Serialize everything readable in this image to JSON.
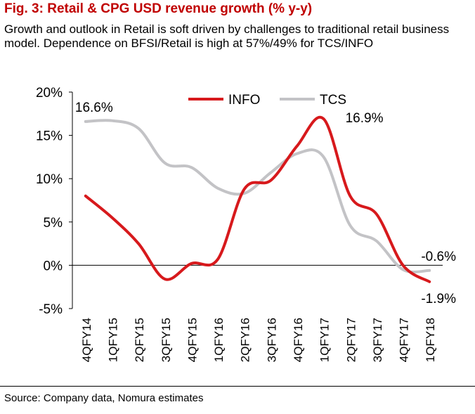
{
  "header": {
    "title": "Fig. 3: Retail & CPG USD revenue growth (% y-y)",
    "subtitle": "Growth and outlook in Retail is soft driven by challenges to traditional retail business model. Dependence on BFSI/Retail is high at 57%/49% for TCS/INFO"
  },
  "footer": {
    "source": "Source: Company data, Nomura estimates"
  },
  "chart_data": {
    "type": "line",
    "categories": [
      "4QFY14",
      "1QFY15",
      "2QFY15",
      "3QFY15",
      "4QFY15",
      "1QFY16",
      "2QFY16",
      "3QFY16",
      "4QFY16",
      "1QFY17",
      "2QFY17",
      "3QFY17",
      "4QFY17",
      "1QFY18"
    ],
    "y_ticks": [
      "20%",
      "15%",
      "10%",
      "5%",
      "0%",
      "-5%"
    ],
    "ylim": [
      -5,
      20
    ],
    "grid": false,
    "legend_position": "top",
    "series": [
      {
        "name": "INFO",
        "color": "#d7191c",
        "values": [
          8.0,
          5.5,
          2.5,
          -1.6,
          0.2,
          0.7,
          8.8,
          9.8,
          13.8,
          16.9,
          8.0,
          5.9,
          0.0,
          -1.9
        ]
      },
      {
        "name": "TCS",
        "color": "#c3c3c6",
        "values": [
          16.6,
          16.7,
          15.8,
          11.8,
          11.3,
          8.9,
          8.3,
          10.7,
          12.9,
          12.5,
          4.6,
          2.8,
          -0.5,
          -0.6
        ]
      }
    ],
    "annotations": [
      {
        "text": "16.6%",
        "series": 1,
        "index": 0,
        "pos": "above"
      },
      {
        "text": "16.9%",
        "series": 0,
        "index": 9,
        "pos": "right"
      },
      {
        "text": "-0.6%",
        "series": 1,
        "index": 13,
        "pos": "above"
      },
      {
        "text": "-1.9%",
        "series": 0,
        "index": 13,
        "pos": "below"
      }
    ]
  }
}
